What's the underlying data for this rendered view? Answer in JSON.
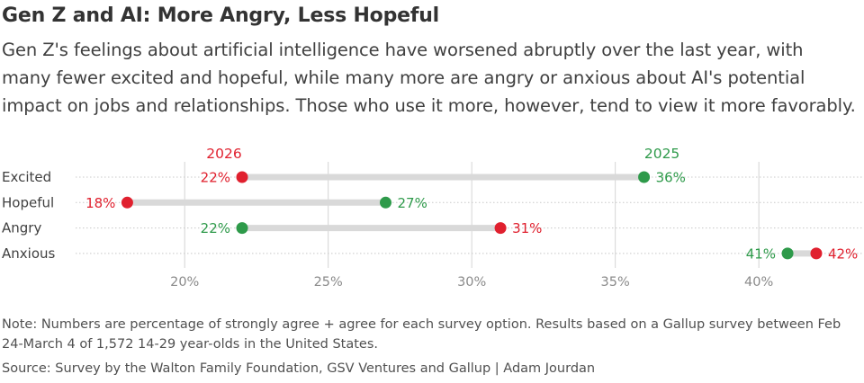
{
  "header": {
    "title": "Gen Z and AI: More Angry, Less Hopeful",
    "subtitle": "Gen Z's feelings about artificial intelligence have worsened abruptly over the last year, with many fewer excited and hopeful, while many more are angry or anxious about AI's potential impact on jobs and relationships. Those who use it more, however, tend to view it more favorably."
  },
  "footer": {
    "note": "Note: Numbers are percentage of strongly agree + agree for each survey option. Results based on a Gallup survey between Feb 24-March 4 of 1,572 14-29 year-olds in the United States.",
    "source": "Source: Survey by the Walton Family Foundation, GSV Ventures and Gallup | Adam Jourdan"
  },
  "chart_data": {
    "type": "dumbbell",
    "categories": [
      "Excited",
      "Hopeful",
      "Angry",
      "Anxious"
    ],
    "series": [
      {
        "name": "2026",
        "color": "#e0202e",
        "values": [
          22,
          18,
          31,
          42
        ]
      },
      {
        "name": "2025",
        "color": "#2e9a4a",
        "values": [
          36,
          27,
          22,
          41
        ]
      }
    ],
    "value_suffix": "%",
    "xlim": [
      16.2,
      43.6
    ],
    "xticks": [
      20,
      25,
      30,
      35,
      40
    ],
    "xtick_labels": [
      "20%",
      "25%",
      "30%",
      "35%",
      "40%"
    ],
    "grid": true,
    "legend": "labels above the Excited row"
  }
}
